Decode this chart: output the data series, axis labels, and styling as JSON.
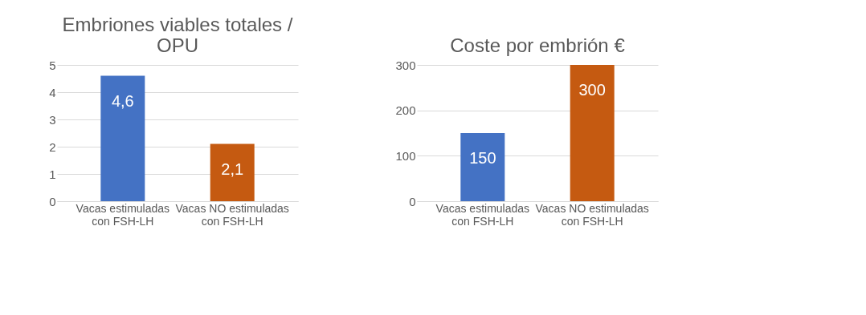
{
  "chart_data": [
    {
      "type": "bar",
      "title": "Embriones viables totales / OPU",
      "categories": [
        "Vacas estimuladas con FSH-LH",
        "Vacas NO estimuladas con FSH-LH"
      ],
      "values": [
        4.6,
        2.1
      ],
      "colors": [
        "#4472c4",
        "#c55a11"
      ],
      "value_labels": [
        "4,6",
        "2,1"
      ],
      "ylim": [
        0,
        5
      ],
      "yticks": [
        0,
        1,
        2,
        3,
        4,
        5
      ],
      "grid": "y"
    },
    {
      "type": "bar",
      "title": "Coste por embrión €",
      "categories": [
        "Vacas estimuladas con FSH-LH",
        "Vacas NO estimuladas con FSH-LH"
      ],
      "values": [
        150,
        300
      ],
      "colors": [
        "#4472c4",
        "#c55a11"
      ],
      "value_labels": [
        "150",
        "300"
      ],
      "ylim": [
        0,
        300
      ],
      "yticks": [
        0,
        100,
        200,
        300
      ],
      "grid": "y"
    }
  ]
}
